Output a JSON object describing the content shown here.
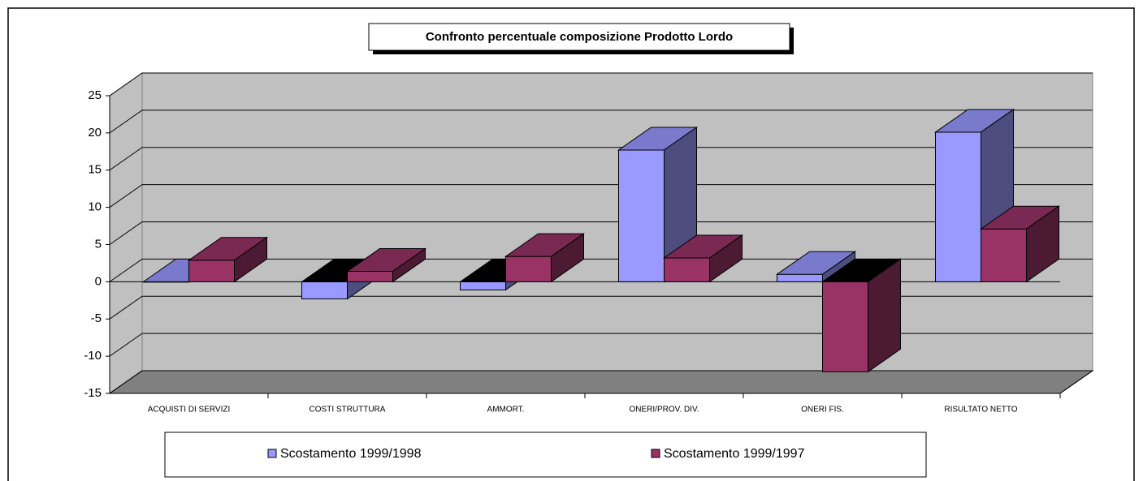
{
  "chart_data": {
    "type": "bar3d",
    "title": "Confronto percentuale composizione Prodotto Lordo",
    "categories": [
      "ACQUISTI DI SERVIZI",
      "COSTI STRUTTURA",
      "AMMORT.",
      "ONERI/PROV. DIV.",
      "ONERI  FIS.",
      "RISULTATO NETTO"
    ],
    "series": [
      {
        "name": "Scostamento 1999/1998",
        "color": "#9999ff",
        "values": [
          0,
          -2.3,
          -1.1,
          17.7,
          1,
          20.1
        ]
      },
      {
        "name": "Scostamento 1999/1997",
        "color": "#993366",
        "values": [
          2.9,
          1.4,
          3.4,
          3.2,
          -12.1,
          7.1
        ]
      }
    ],
    "ylim": [
      -15,
      25
    ],
    "yticks": [
      -15,
      -10,
      -5,
      0,
      5,
      10,
      15,
      20,
      25
    ],
    "grid": true
  }
}
